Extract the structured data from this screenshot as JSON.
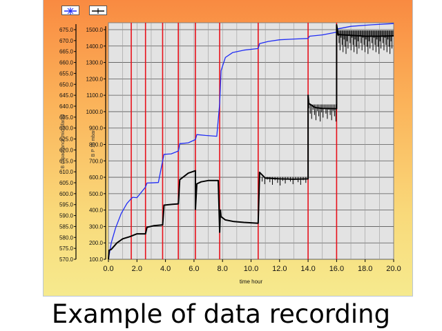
{
  "caption": "Example of data recording",
  "chart_data": {
    "type": "line",
    "xlabel": "time hour",
    "x_ticks": [
      "0.0",
      "2.0",
      "4.0",
      "6.0",
      "8.0",
      "10.0",
      "12.0",
      "14.0",
      "16.0",
      "18.0",
      "20.0"
    ],
    "xlim": [
      0,
      20
    ],
    "left_axis_outer": {
      "label": "B capacitance microfarad",
      "ylim": [
        570,
        675
      ],
      "ticks": [
        "570.0",
        "575.0",
        "580.0",
        "585.0",
        "590.0",
        "595.0",
        "600.0",
        "605.0",
        "610.0",
        "615.0",
        "620.0",
        "625.0",
        "630.0",
        "635.0",
        "640.0",
        "645.0",
        "650.0",
        "655.0",
        "660.0",
        "665.0",
        "670.0",
        "675.0"
      ]
    },
    "left_axis_inner": {
      "label": "B P 10 mbar",
      "ylim": [
        100,
        1500
      ],
      "ticks": [
        "100.0",
        "200.0",
        "300.0",
        "400.0",
        "500.0",
        "600.0",
        "700.0",
        "800.0",
        "900.0",
        "1000.0",
        "1100.0",
        "1200.0",
        "1300.0",
        "1400.0",
        "1500.0"
      ]
    },
    "event_markers_x": [
      1.6,
      2.6,
      3.8,
      4.9,
      6.1,
      7.8,
      10.5,
      14.0,
      16.0
    ],
    "grid": true,
    "legend": "top-left",
    "series": [
      {
        "color": "#1f2cf5",
        "axis": "inner",
        "x": [
          0.0,
          0.2,
          0.5,
          0.9,
          1.3,
          1.6,
          1.7,
          2.0,
          2.6,
          2.7,
          3.0,
          3.5,
          3.8,
          3.9,
          4.4,
          4.9,
          5.0,
          5.6,
          6.1,
          6.2,
          6.8,
          7.6,
          7.8,
          7.9,
          8.2,
          8.7,
          9.5,
          10.5,
          10.6,
          11.2,
          12.0,
          13.0,
          14.0,
          14.1,
          15.0,
          16.0,
          16.1,
          17.0,
          18.5,
          20.0
        ],
        "y": [
          100,
          200,
          290,
          380,
          440,
          470,
          478,
          476,
          540,
          565,
          566,
          568,
          700,
          740,
          743,
          760,
          805,
          810,
          830,
          860,
          855,
          850,
          1050,
          1250,
          1330,
          1360,
          1375,
          1385,
          1415,
          1428,
          1438,
          1443,
          1446,
          1460,
          1468,
          1485,
          1505,
          1520,
          1530,
          1537
        ]
      },
      {
        "color": "#000000",
        "axis": "inner",
        "x": [
          0.0,
          0.05,
          0.2,
          0.6,
          1.0,
          1.5,
          2.0,
          2.6,
          2.7,
          3.2,
          3.8,
          3.9,
          4.5,
          4.9,
          5.0,
          5.6,
          6.1,
          6.1,
          6.2,
          6.5,
          7.0,
          7.7,
          7.8,
          7.85,
          7.9,
          8.2,
          8.8,
          9.5,
          10.5,
          10.5,
          10.6,
          11.0,
          12.0,
          13.0,
          14.0,
          14.0,
          14.05,
          14.5,
          15.0,
          16.0,
          16.0,
          16.1,
          17.0,
          18.0,
          19.0,
          20.0
        ],
        "y": [
          100,
          155,
          160,
          200,
          225,
          238,
          255,
          255,
          295,
          305,
          310,
          430,
          435,
          438,
          585,
          625,
          640,
          405,
          560,
          572,
          580,
          580,
          265,
          400,
          360,
          340,
          330,
          325,
          320,
          320,
          630,
          595,
          590,
          588,
          590,
          1100,
          1050,
          1025,
          1020,
          1018,
          1530,
          1470,
          1465,
          1460,
          1460,
          1462
        ]
      }
    ]
  }
}
